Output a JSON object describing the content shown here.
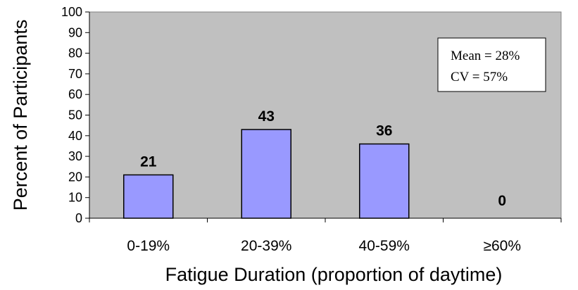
{
  "chart_data": {
    "type": "bar",
    "categories": [
      "0-19%",
      "20-39%",
      "40-59%",
      "≥60%"
    ],
    "values": [
      21,
      43,
      36,
      0
    ],
    "data_labels": [
      "21",
      "43",
      "36",
      "0"
    ],
    "title": "",
    "xlabel": "Fatigue Duration (proportion of daytime)",
    "ylabel": "Percent of Participants",
    "ylim": [
      0,
      100
    ],
    "yticks": [
      0,
      10,
      20,
      30,
      40,
      50,
      60,
      70,
      80,
      90,
      100
    ],
    "grid": false,
    "plot_background": "#c0c0c0",
    "bar_color": "#9999ff",
    "annotation": {
      "lines": [
        "Mean = 28%",
        "CV = 57%"
      ],
      "position": "top-right"
    }
  }
}
